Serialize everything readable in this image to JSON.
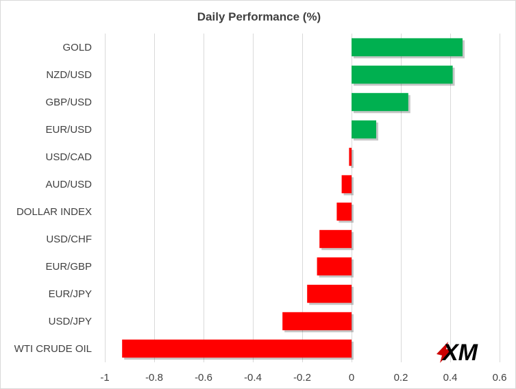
{
  "chart_data": {
    "type": "bar",
    "orientation": "horizontal",
    "title": "Daily Performance  (%)",
    "xlabel": "",
    "ylabel": "",
    "categories": [
      "GOLD",
      "NZD/USD",
      "GBP/USD",
      "EUR/USD",
      "USD/CAD",
      "AUD/USD",
      "DOLLAR INDEX",
      "USD/CHF",
      "EUR/GBP",
      "EUR/JPY",
      "USD/JPY",
      "WTI CRUDE OIL"
    ],
    "values": [
      0.45,
      0.41,
      0.23,
      0.1,
      -0.01,
      -0.04,
      -0.06,
      -0.13,
      -0.14,
      -0.18,
      -0.28,
      -0.93
    ],
    "xlim": [
      -1,
      0.6
    ],
    "xticks": [
      -1,
      -0.8,
      -0.6,
      -0.4,
      -0.2,
      0,
      0.2,
      0.4,
      0.6
    ],
    "xtick_labels": [
      "-1",
      "-0.8",
      "-0.6",
      "-0.4",
      "-0.2",
      "0",
      "0.2",
      "0.4",
      "0.6"
    ],
    "grid": "vertical",
    "legend": "none",
    "colors": {
      "positive": "#00b050",
      "negative": "#ff0000",
      "grid": "#d9d9d9",
      "text": "#404040"
    }
  },
  "logo": {
    "text": "XM",
    "colors": {
      "mark": "#cc0000",
      "text": "#000000"
    }
  }
}
